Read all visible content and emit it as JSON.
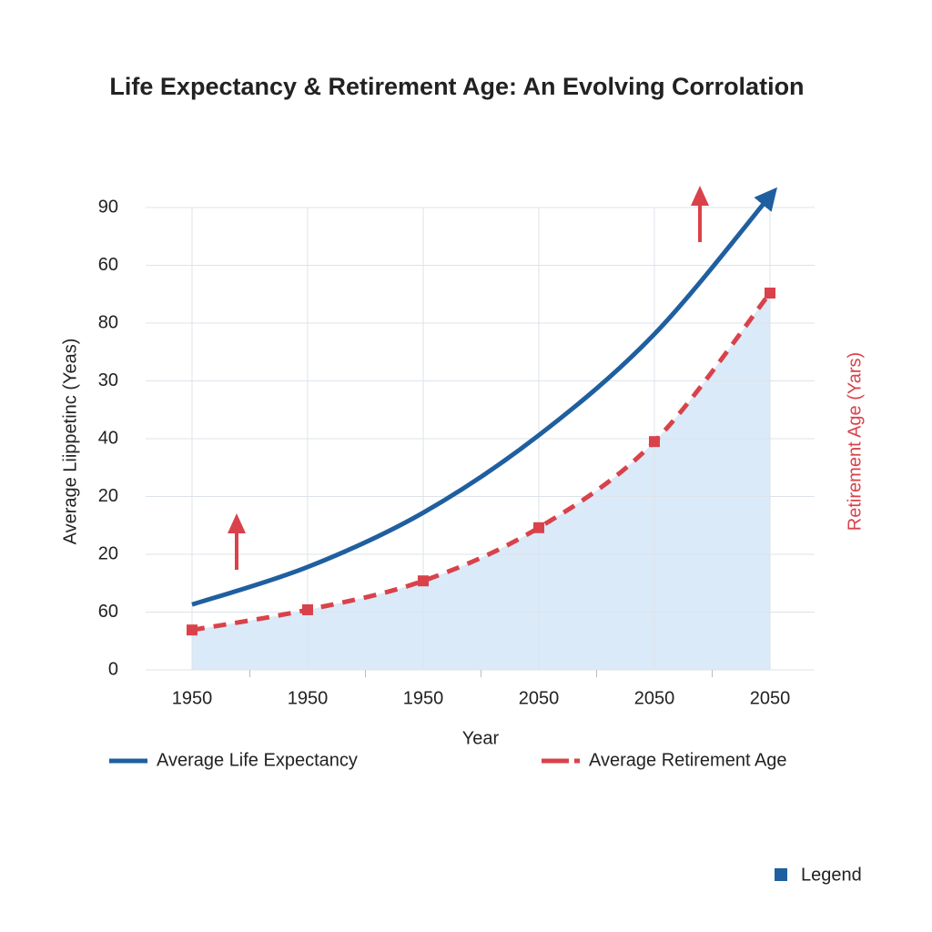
{
  "chart_data": {
    "type": "line",
    "title": "Life Expectancy & Retirement Age: An Evolving Corrolation",
    "x_label": "Year",
    "y_label": "Average Liippetinc (Yeas)",
    "y2_label": "Retirement Age (Yars)",
    "categories": [
      "1950",
      "1950",
      "1950",
      "2050",
      "2050",
      "2050"
    ],
    "series": [
      {
        "name": "Average Life Expectancy",
        "color": "#1f5fa0",
        "values": [
          1.13,
          1.78,
          2.72,
          4.06,
          5.81,
          8.2
        ]
      },
      {
        "name": "Average Retirement Age",
        "color": "#d9424a",
        "values": [
          0.69,
          1.04,
          1.54,
          2.46,
          3.95,
          6.52
        ]
      }
    ],
    "ylim": [
      0,
      8
    ],
    "yticks": [
      {
        "value": 0,
        "label": "0"
      },
      {
        "value": 1,
        "label": "60"
      },
      {
        "value": 2,
        "label": "20"
      },
      {
        "value": 3,
        "label": "20"
      },
      {
        "value": 4,
        "label": "40"
      },
      {
        "value": 5,
        "label": "30"
      },
      {
        "value": 6,
        "label": "80"
      },
      {
        "value": 7,
        "label": "60"
      },
      {
        "value": 8,
        "label": "90"
      }
    ],
    "grid": true,
    "area_color": "#d6e8f7",
    "legend_title": "Legend"
  }
}
